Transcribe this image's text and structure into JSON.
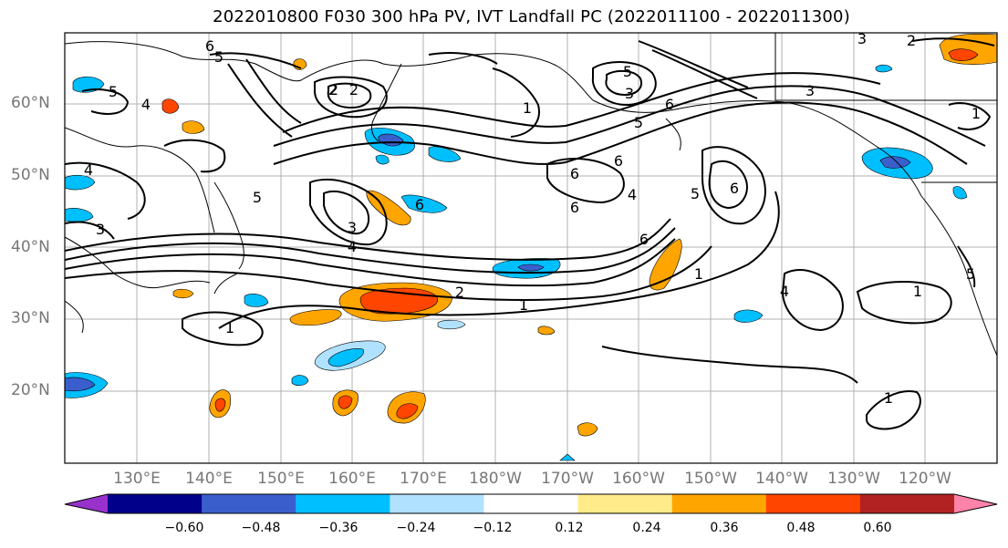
{
  "title": "2022010800 F030 300 hPa PV, IVT Landfall PC (2022011100 - 2022011300)",
  "lat_labels": [
    "60°N",
    "50°N",
    "40°N",
    "30°N",
    "20°N"
  ],
  "lon_labels": [
    "130°E",
    "140°E",
    "150°E",
    "160°E",
    "170°E",
    "180°W",
    "170°W",
    "160°W",
    "150°W",
    "140°W",
    "130°W",
    "120°W"
  ],
  "colorbar": {
    "colors": [
      "#9932cc",
      "#00008b",
      "#3a5fcd",
      "#00bfff",
      "#b0e2ff",
      "#ffffff",
      "#ffeb8a",
      "#ffa500",
      "#ff4500",
      "#b22222",
      "#ff82ab"
    ],
    "ticks": [
      "−0.60",
      "−0.48",
      "−0.36",
      "−0.24",
      "−0.12",
      "0.12",
      "0.24",
      "0.36",
      "0.48",
      "0.60"
    ]
  },
  "contour_labels": [
    "6",
    "5",
    "4",
    "3",
    "2",
    "1",
    "2",
    "3",
    "4",
    "5",
    "6",
    "6",
    "4",
    "6",
    "6",
    "5",
    "6",
    "5",
    "4",
    "3",
    "2",
    "1",
    "1",
    "3",
    "2",
    "5",
    "6",
    "3",
    "5",
    "4",
    "1",
    "6",
    "2",
    "1",
    "1",
    "1",
    "5"
  ]
}
